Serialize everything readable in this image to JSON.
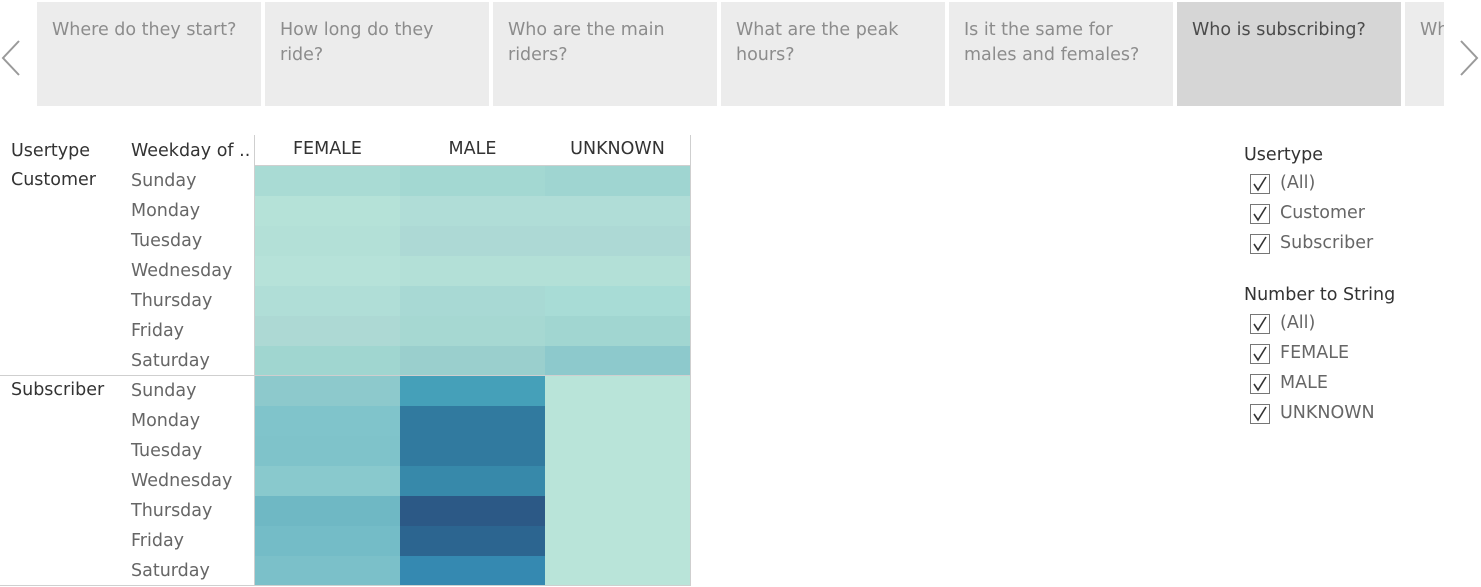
{
  "story": {
    "points": [
      {
        "label": "Where do they start?",
        "active": false
      },
      {
        "label": "How long do they ride?",
        "active": false
      },
      {
        "label": "Who are the main riders?",
        "active": false
      },
      {
        "label": "What are the peak hours?",
        "active": false
      },
      {
        "label": "Is it the same for males and females?",
        "active": false
      },
      {
        "label": "Who is subscribing?",
        "active": true
      },
      {
        "label": "Wh",
        "active": false
      }
    ],
    "prev_icon": "chevron-left-icon",
    "next_icon": "chevron-right-icon"
  },
  "crosstab": {
    "row_headers": [
      "Usertype",
      "Weekday of .."
    ],
    "columns": [
      "FEMALE",
      "MALE",
      "UNKNOWN"
    ],
    "groups": [
      {
        "usertype": "Customer",
        "days": [
          "Sunday",
          "Monday",
          "Tuesday",
          "Wednesday",
          "Thursday",
          "Friday",
          "Saturday"
        ],
        "colors": [
          [
            "#a9dbd4",
            "#a3d8d2",
            "#9fd5d1"
          ],
          [
            "#b5e2d8",
            "#b0ddd7",
            "#b0ddd7"
          ],
          [
            "#b3e0d7",
            "#add9d5",
            "#add9d5"
          ],
          [
            "#b6e2d9",
            "#b3e0d7",
            "#b3e0d7"
          ],
          [
            "#b0ded7",
            "#a8d9d4",
            "#a8dcd6"
          ],
          [
            "#add9d4",
            "#a6d8d2",
            "#a1d6d1"
          ],
          [
            "#a0d6d0",
            "#9acfcd",
            "#8dc9cc"
          ]
        ]
      },
      {
        "usertype": "Subscriber",
        "days": [
          "Sunday",
          "Monday",
          "Tuesday",
          "Wednesday",
          "Thursday",
          "Friday",
          "Saturday"
        ],
        "colors": [
          [
            "#8dc9cc",
            "#45a0b9",
            "#b9e4d9"
          ],
          [
            "#80c4cb",
            "#317a9f",
            "#b9e4d9"
          ],
          [
            "#7fc3ca",
            "#317a9f",
            "#b9e4d9"
          ],
          [
            "#89c9cd",
            "#3789aa",
            "#b9e4d9"
          ],
          [
            "#6fb8c4",
            "#2c5986",
            "#b9e4d9"
          ],
          [
            "#74bcc7",
            "#2c6590",
            "#b9e4d9"
          ],
          [
            "#7bc0c9",
            "#3589b1",
            "#b9e4d9"
          ]
        ]
      }
    ]
  },
  "filters": [
    {
      "title": "Usertype",
      "items": [
        {
          "label": "(All)",
          "checked": true
        },
        {
          "label": "Customer",
          "checked": true
        },
        {
          "label": "Subscriber",
          "checked": true
        }
      ]
    },
    {
      "title": "Number to String",
      "items": [
        {
          "label": "(All)",
          "checked": true
        },
        {
          "label": "FEMALE",
          "checked": true
        },
        {
          "label": "MALE",
          "checked": true
        },
        {
          "label": "UNKNOWN",
          "checked": true
        }
      ]
    }
  ]
}
